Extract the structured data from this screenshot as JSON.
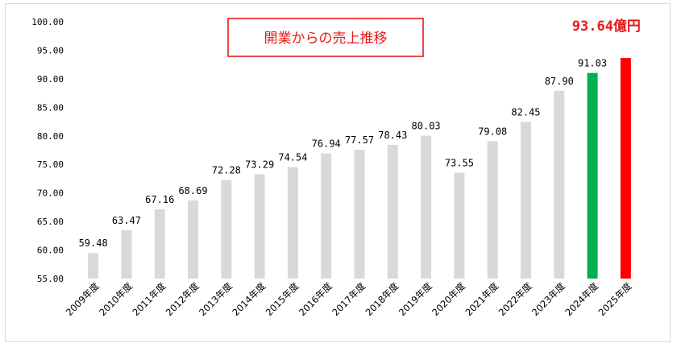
{
  "chart_data": {
    "type": "bar",
    "title": "開業からの売上推移",
    "title_color": "#e8191a",
    "categories": [
      "2009年度",
      "2010年度",
      "2011年度",
      "2012年度",
      "2013年度",
      "2014年度",
      "2015年度",
      "2016年度",
      "2017年度",
      "2018年度",
      "2019年度",
      "2020年度",
      "2021年度",
      "2022年度",
      "2023年度",
      "2024年度",
      "2025年度"
    ],
    "values": [
      59.48,
      63.47,
      67.16,
      68.69,
      72.28,
      73.29,
      74.54,
      76.94,
      77.57,
      78.43,
      80.03,
      73.55,
      79.08,
      82.45,
      87.9,
      91.03,
      93.64
    ],
    "value_labels": [
      "59.48",
      "63.47",
      "67.16",
      "68.69",
      "72.28",
      "73.29",
      "74.54",
      "76.94",
      "77.57",
      "78.43",
      "80.03",
      "73.55",
      "79.08",
      "82.45",
      "87.90",
      "91.03",
      "93.64億円"
    ],
    "bar_colors": [
      "#d9d9d9",
      "#d9d9d9",
      "#d9d9d9",
      "#d9d9d9",
      "#d9d9d9",
      "#d9d9d9",
      "#d9d9d9",
      "#d9d9d9",
      "#d9d9d9",
      "#d9d9d9",
      "#d9d9d9",
      "#d9d9d9",
      "#d9d9d9",
      "#d9d9d9",
      "#d9d9d9",
      "#00b050",
      "#ff0000"
    ],
    "highlight_label_color": "#e8191a",
    "ylim": [
      55,
      100
    ],
    "yticks": [
      "55.00",
      "60.00",
      "65.00",
      "70.00",
      "75.00",
      "80.00",
      "85.00",
      "90.00",
      "95.00",
      "100.00"
    ],
    "xlabel": "",
    "ylabel": "",
    "grid": false,
    "legend": "none"
  }
}
